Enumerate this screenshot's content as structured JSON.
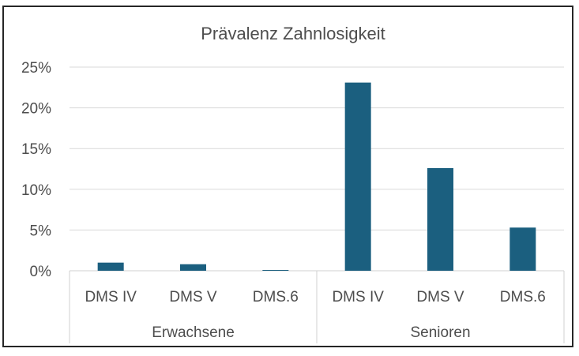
{
  "chart_data": {
    "type": "bar",
    "title": "Prävalenz Zahnlosigkeit",
    "xlabel": "",
    "ylabel": "",
    "ylim": [
      0,
      0.25
    ],
    "y_ticks": [
      "0%",
      "5%",
      "10%",
      "15%",
      "20%",
      "25%"
    ],
    "y_tick_values": [
      0,
      0.05,
      0.1,
      0.15,
      0.2,
      0.25
    ],
    "grid": true,
    "legend": "none",
    "bar_color": "#1b5f7f",
    "groups": [
      {
        "label": "Erwachsene",
        "categories": [
          "DMS IV",
          "DMS V",
          "DMS.6"
        ],
        "values": [
          0.01,
          0.008,
          0.001
        ]
      },
      {
        "label": "Senioren",
        "categories": [
          "DMS IV",
          "DMS V",
          "DMS.6"
        ],
        "values": [
          0.231,
          0.126,
          0.053
        ]
      }
    ]
  }
}
